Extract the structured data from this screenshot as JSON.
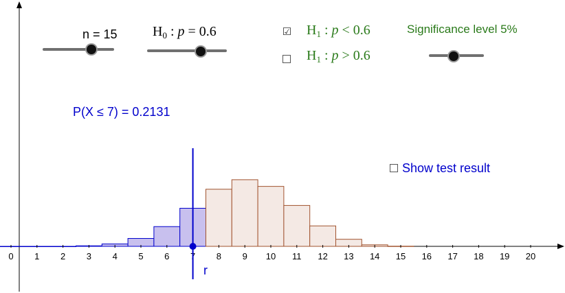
{
  "controls": {
    "n_label": "n = 15",
    "h0": {
      "H": "H",
      "sub": "0",
      "rest": " : ",
      "p": "p",
      "op": " = ",
      "val": "0.6"
    },
    "h1_less": {
      "H": "H",
      "sub": "1",
      "rest": " : ",
      "p": "p",
      "op": " < ",
      "val": "0.6",
      "checked": true
    },
    "h1_greater": {
      "H": "H",
      "sub": "1",
      "rest": " : ",
      "p": "p",
      "op": " > ",
      "val": "0.6",
      "checked": false
    },
    "significance_label": "Significance level 5%",
    "show_test_label": "Show test result",
    "show_test_checked": false,
    "sliders": {
      "n": {
        "value": 15,
        "min": 1,
        "max": 20,
        "fraction": 0.7
      },
      "p": {
        "value": 0.6,
        "fraction": 0.65
      },
      "significance": {
        "value": 5,
        "fraction": 0.45
      }
    }
  },
  "probability_text": "P(X ≤ 7) = 0.2131",
  "r_label": "r",
  "checkmark": "☑",
  "colors": {
    "blue": "#0000cc",
    "green": "#2a7a1a",
    "blue_fill": "#c8c0ee",
    "brown_stroke": "#a0522d",
    "brown_fill": "#f4e9e4"
  },
  "chart_data": {
    "type": "bar",
    "x": [
      0,
      1,
      2,
      3,
      4,
      5,
      6,
      7,
      8,
      9,
      10,
      11,
      12,
      13,
      14,
      15
    ],
    "values": [
      0.0,
      0.0,
      0.0,
      0.0016,
      0.0074,
      0.0245,
      0.0612,
      0.1181,
      0.1771,
      0.2066,
      0.1859,
      0.1268,
      0.0634,
      0.0219,
      0.0047,
      0.0005
    ],
    "critical_r": 7,
    "xlim": [
      0,
      20
    ],
    "xticks": [
      "0",
      "1",
      "2",
      "3",
      "4",
      "5",
      "6",
      "7",
      "8",
      "9",
      "10",
      "11",
      "12",
      "13",
      "14",
      "15",
      "16",
      "17",
      "18",
      "19",
      "20"
    ]
  }
}
